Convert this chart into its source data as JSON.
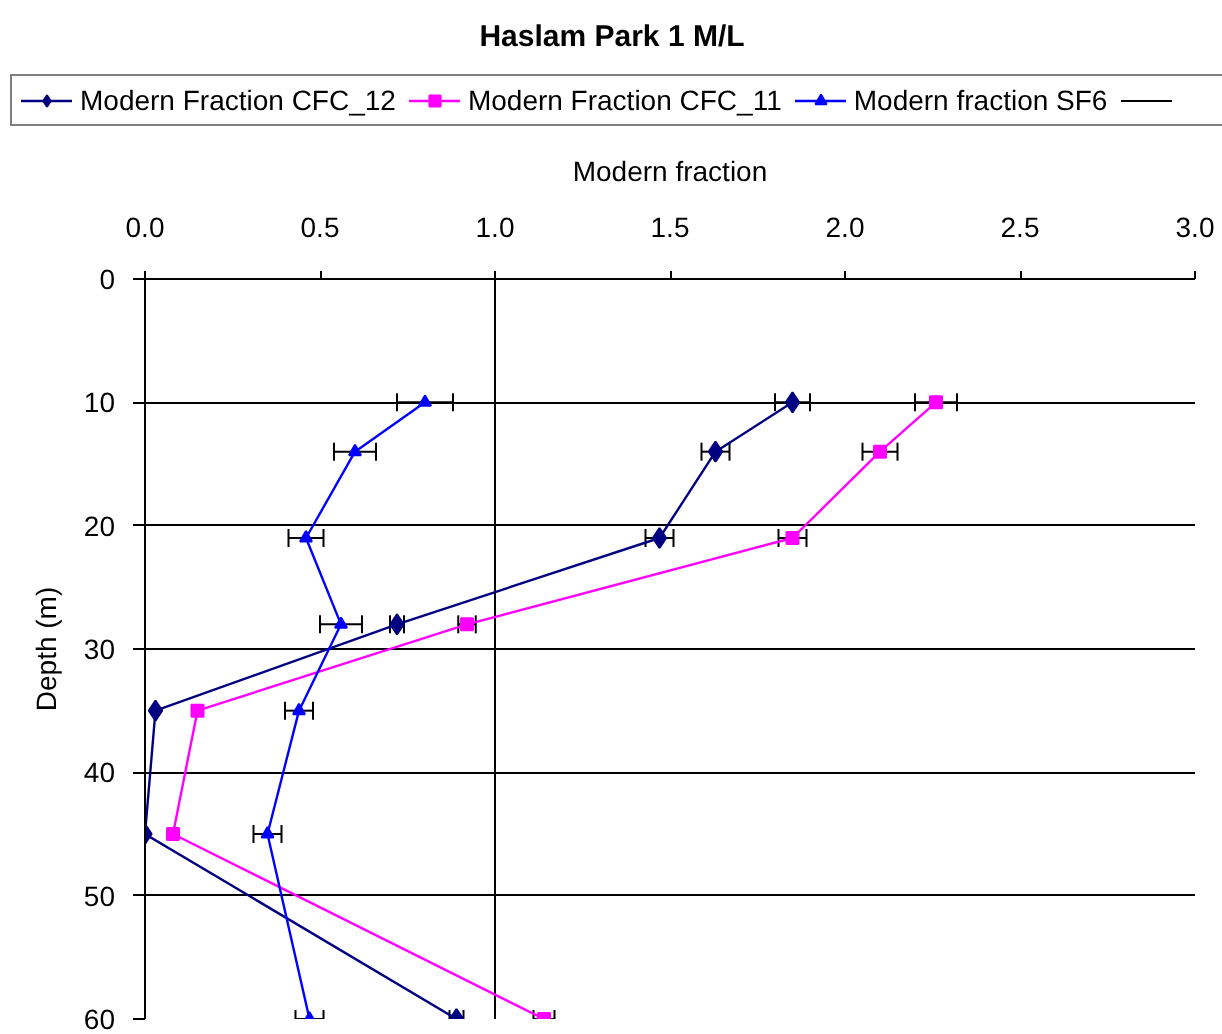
{
  "chart_data": {
    "type": "line",
    "title": "Haslam Park 1 M/L",
    "xlabel": "Modern fraction",
    "ylabel": "Depth (m)",
    "xlim": [
      0,
      3
    ],
    "xticks": [
      {
        "value": 0,
        "label": "0.0"
      },
      {
        "value": 0.5,
        "label": "0.5"
      },
      {
        "value": 1,
        "label": "1.0"
      },
      {
        "value": 1.5,
        "label": "1.5"
      },
      {
        "value": 2,
        "label": "2.0"
      },
      {
        "value": 2.5,
        "label": "2.5"
      },
      {
        "value": 3,
        "label": "3.0"
      }
    ],
    "ylim": [
      60,
      0
    ],
    "yticks": [
      0,
      10,
      20,
      30,
      40,
      50,
      60
    ],
    "grid": "y",
    "legend": "top",
    "ref_lines": [
      {
        "axis": "x",
        "value": 1,
        "color": "#000000"
      }
    ],
    "series": [
      {
        "name": "Modern Fraction CFC_12",
        "color": "#000080",
        "marker": "diamond",
        "x": [
          1.85,
          1.63,
          1.47,
          0.72,
          0.03,
          0.0,
          0.89
        ],
        "values": [
          10,
          14,
          21,
          28,
          35,
          45,
          60
        ],
        "xerrors": [
          0.05,
          0.04,
          0.04,
          0.02,
          null,
          null,
          0.02
        ]
      },
      {
        "name": "Modern Fraction CFC_11",
        "color": "#ff00ff",
        "marker": "square",
        "x": [
          2.26,
          2.1,
          1.85,
          0.92,
          0.15,
          0.08,
          1.14
        ],
        "values": [
          10,
          14,
          21,
          28,
          35,
          45,
          60
        ],
        "xerrors": [
          0.06,
          0.05,
          0.04,
          0.025,
          null,
          null,
          0.03
        ]
      },
      {
        "name": "Modern fraction SF6",
        "color": "#0000ff",
        "marker": "triangle",
        "x": [
          0.8,
          0.6,
          0.46,
          0.56,
          0.44,
          0.35,
          0.47
        ],
        "values": [
          10,
          14,
          21,
          28,
          35,
          45,
          60
        ],
        "xerrors": [
          0.08,
          0.06,
          0.05,
          0.06,
          0.04,
          0.04,
          0.04
        ]
      }
    ]
  }
}
